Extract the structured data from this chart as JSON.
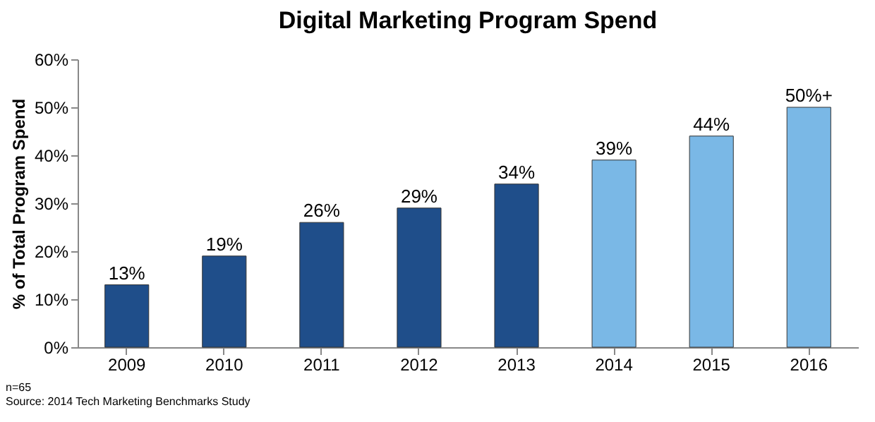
{
  "chart_data": {
    "type": "bar",
    "title": "Digital Marketing Program  Spend",
    "ylabel": "% of Total Program Spend",
    "categories": [
      "2009",
      "2010",
      "2011",
      "2012",
      "2013",
      "2014",
      "2015",
      "2016"
    ],
    "values": [
      13,
      19,
      26,
      29,
      34,
      39,
      44,
      50
    ],
    "colors": [
      "#1f4e8a",
      "#1f4e8a",
      "#1f4e8a",
      "#1f4e8a",
      "#1f4e8a",
      "#7ab8e6",
      "#7ab8e6",
      "#7ab8e6"
    ],
    "value_labels": [
      "13%",
      "19%",
      "26%",
      "29%",
      "34%",
      "39%",
      "44%",
      "50%+"
    ],
    "ylim": [
      0,
      60
    ],
    "yticks": [
      {
        "value": 0,
        "label": "0%"
      },
      {
        "value": 10,
        "label": "10%"
      },
      {
        "value": 20,
        "label": "20%"
      },
      {
        "value": 30,
        "label": "30%"
      },
      {
        "value": 40,
        "label": "40%"
      },
      {
        "value": 50,
        "label": "50%"
      },
      {
        "value": 60,
        "label": "60%"
      }
    ],
    "grid": false,
    "annotations": [
      "n=65",
      "Source: 2014 Tech Marketing Benchmarks Study"
    ]
  }
}
